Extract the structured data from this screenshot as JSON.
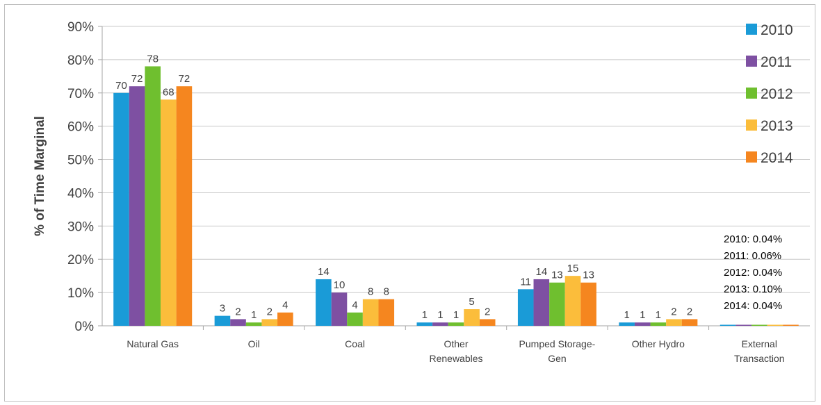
{
  "chart_data": {
    "type": "bar",
    "title": "",
    "xlabel": "",
    "ylabel": "% of Time Marginal",
    "ylim": [
      0,
      90
    ],
    "yticks": [
      "0%",
      "10%",
      "20%",
      "30%",
      "40%",
      "50%",
      "60%",
      "70%",
      "80%",
      "90%"
    ],
    "categories": [
      "Natural Gas",
      "Oil",
      "Coal",
      "Other Renewables",
      "Pumped Storage-Gen",
      "Other Hydro",
      "External Transaction"
    ],
    "category_label_lines": [
      [
        "Natural Gas"
      ],
      [
        "Oil"
      ],
      [
        "Coal"
      ],
      [
        "Other",
        "Renewables"
      ],
      [
        "Pumped Storage-",
        "Gen"
      ],
      [
        "Other Hydro"
      ],
      [
        "External",
        "Transaction"
      ]
    ],
    "series": [
      {
        "name": "2010",
        "color": "#1a9bd7",
        "values": [
          70,
          3,
          14,
          1,
          11,
          1,
          0.04
        ],
        "labels": [
          "70",
          "3",
          "14",
          "1",
          "11",
          "1",
          ""
        ]
      },
      {
        "name": "2011",
        "color": "#7e50a2",
        "values": [
          72,
          2,
          10,
          1,
          14,
          1,
          0.06
        ],
        "labels": [
          "72",
          "2",
          "10",
          "1",
          "14",
          "1",
          ""
        ]
      },
      {
        "name": "2012",
        "color": "#6fbf2f",
        "values": [
          78,
          1,
          4,
          1,
          13,
          1,
          0.04
        ],
        "labels": [
          "78",
          "1",
          "4",
          "1",
          "13",
          "1",
          ""
        ]
      },
      {
        "name": "2013",
        "color": "#fbbd3b",
        "values": [
          68,
          2,
          8,
          5,
          15,
          2,
          0.1
        ],
        "labels": [
          "68",
          "2",
          "8",
          "5",
          "15",
          "2",
          ""
        ]
      },
      {
        "name": "2014",
        "color": "#f5861f",
        "values": [
          72,
          4,
          8,
          2,
          13,
          2,
          0.04
        ],
        "labels": [
          "72",
          "4",
          "8",
          "2",
          "13",
          "2",
          ""
        ]
      }
    ],
    "grid": true,
    "legend_position": "right",
    "annotations": [
      "2010: 0.04%",
      "2011: 0.06%",
      "2012: 0.04%",
      "2013: 0.10%",
      "2014: 0.04%"
    ]
  }
}
